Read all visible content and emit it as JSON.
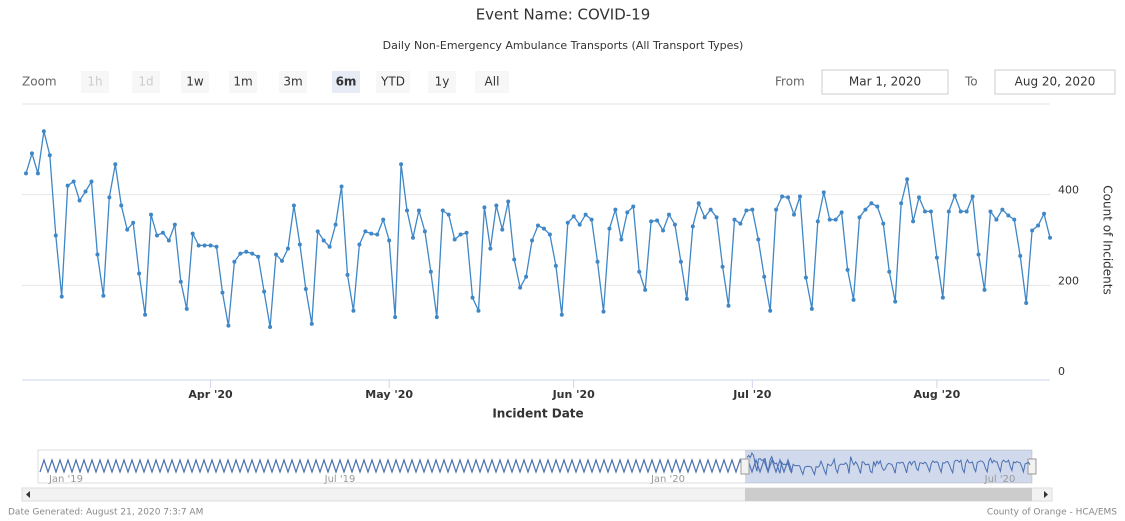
{
  "chart_data": {
    "type": "line",
    "title": "Event Name: COVID-19",
    "subtitle": "Daily Non-Emergency Ambulance Transports (All Transport Types)",
    "x_label": "Incident Date",
    "y_label": "Count of Incidents",
    "categories": [
      null,
      null,
      null,
      null,
      null,
      null,
      null,
      null,
      null,
      null,
      null,
      null,
      null,
      null,
      null,
      null,
      null,
      null,
      null,
      null,
      null,
      null,
      null,
      null,
      null,
      null,
      null,
      null,
      null,
      null,
      null,
      "Apr '20",
      null,
      null,
      null,
      null,
      null,
      null,
      null,
      null,
      null,
      null,
      null,
      null,
      null,
      null,
      null,
      null,
      null,
      null,
      null,
      null,
      null,
      null,
      null,
      null,
      null,
      null,
      null,
      null,
      null,
      "May '20",
      null,
      null,
      null,
      null,
      null,
      null,
      null,
      null,
      null,
      null,
      null,
      null,
      null,
      null,
      null,
      null,
      null,
      null,
      null,
      null,
      null,
      null,
      null,
      null,
      null,
      null,
      null,
      null,
      null,
      null,
      "Jun '20",
      null,
      null,
      null,
      null,
      null,
      null,
      null,
      null,
      null,
      null,
      null,
      null,
      null,
      null,
      null,
      null,
      null,
      null,
      null,
      null,
      null,
      null,
      null,
      null,
      null,
      null,
      null,
      null,
      null,
      "Jul '20",
      null,
      null,
      null,
      null,
      null,
      null,
      null,
      null,
      null,
      null,
      null,
      null,
      null,
      null,
      null,
      null,
      null,
      null,
      null,
      null,
      null,
      null,
      null,
      null,
      null,
      null,
      null,
      null,
      null,
      null,
      "Aug '20",
      null,
      null,
      null,
      null,
      null,
      null,
      null,
      null,
      null,
      null,
      null,
      null,
      null,
      null,
      null,
      null,
      null,
      null,
      null
    ],
    "series": [
      {
        "name": "Count of Incidents",
        "color": "#3f87c7",
        "values": [
          447,
          491,
          447,
          540,
          487,
          310,
          175,
          420,
          429,
          387,
          407,
          429,
          268,
          177,
          394,
          467,
          376,
          323,
          338,
          226,
          135,
          356,
          310,
          316,
          299,
          334,
          208,
          148,
          314,
          288,
          288,
          288,
          285,
          184,
          111,
          252,
          270,
          274,
          270,
          263,
          186,
          108,
          268,
          254,
          281,
          376,
          290,
          192,
          115,
          319,
          299,
          285,
          334,
          418,
          223,
          144,
          290,
          319,
          314,
          312,
          345,
          299,
          130,
          467,
          365,
          305,
          365,
          319,
          230,
          130,
          365,
          356,
          301,
          312,
          316,
          173,
          144,
          372,
          281,
          376,
          323,
          385,
          257,
          195,
          219,
          299,
          332,
          325,
          312,
          243,
          135,
          338,
          352,
          334,
          356,
          345,
          252,
          142,
          325,
          367,
          301,
          361,
          374,
          230,
          190,
          341,
          343,
          321,
          356,
          334,
          252,
          170,
          330,
          381,
          350,
          367,
          350,
          241,
          155,
          345,
          336,
          365,
          367,
          301,
          219,
          144,
          367,
          396,
          394,
          356,
          396,
          217,
          148,
          341,
          405,
          345,
          345,
          361,
          234,
          168,
          350,
          367,
          381,
          374,
          336,
          230,
          164,
          381,
          434,
          341,
          394,
          363,
          363,
          261,
          173,
          363,
          398,
          363,
          363,
          396,
          268,
          190,
          363,
          345,
          367,
          354,
          345,
          265,
          161,
          321,
          332,
          358,
          305
        ]
      }
    ],
    "ylim": [
      0,
      600
    ],
    "yticks": [
      0,
      200,
      400
    ],
    "grid": true
  },
  "range_selector": {
    "label": "Zoom",
    "buttons": [
      {
        "label": "1h",
        "state": "disabled"
      },
      {
        "label": "1d",
        "state": "disabled"
      },
      {
        "label": "1w",
        "state": "normal"
      },
      {
        "label": "1m",
        "state": "normal"
      },
      {
        "label": "3m",
        "state": "normal"
      },
      {
        "label": "6m",
        "state": "selected"
      },
      {
        "label": "YTD",
        "state": "normal"
      },
      {
        "label": "1y",
        "state": "normal"
      },
      {
        "label": "All",
        "state": "normal"
      }
    ],
    "from_label": "From",
    "from": "Mar 1, 2020",
    "to_label": "To",
    "to": "Aug 20, 2020"
  },
  "navigator": {
    "labels": [
      "Jan '19",
      "Jul '19",
      "Jan '20",
      "Jul '20"
    ]
  },
  "footer": {
    "left": "Date Generated: August 21, 2020 7:3:7 AM",
    "right": "County of Orange - HCA/EMS"
  }
}
